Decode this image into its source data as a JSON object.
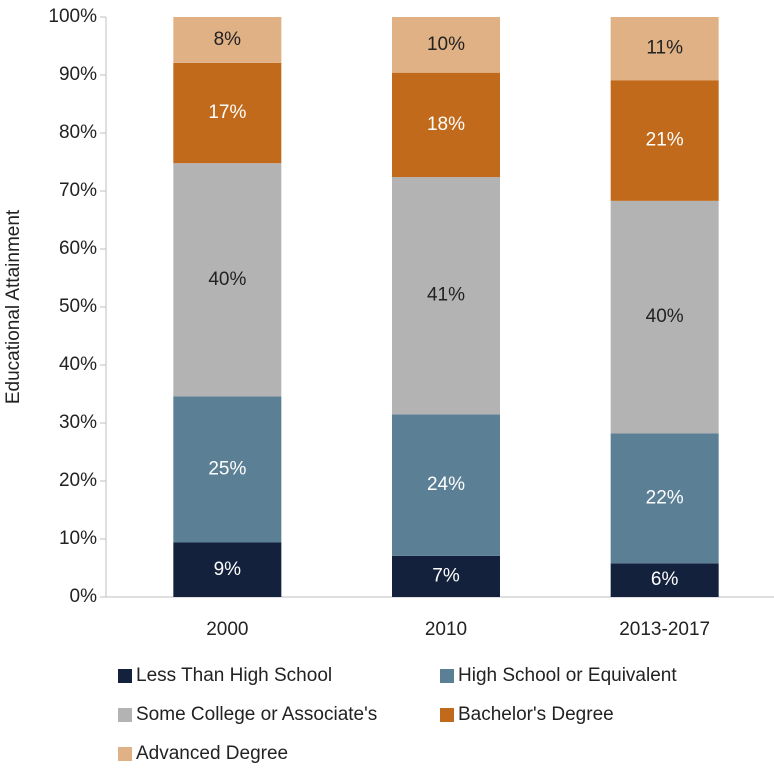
{
  "chart_data": {
    "type": "stacked_bar",
    "y_label": "Educational Attainment",
    "categories": [
      "2000",
      "2010",
      "2013-2017"
    ],
    "series": [
      {
        "name": "Less Than High School",
        "color": "#14213d",
        "values": [
          9.4,
          7.1,
          5.8
        ],
        "value_labels": [
          "9%",
          "7%",
          "6%"
        ]
      },
      {
        "name": "High School or Equivalent",
        "color": "#5b7f95",
        "values": [
          25.2,
          24.4,
          22.4
        ],
        "value_labels": [
          "25%",
          "24%",
          "22%"
        ]
      },
      {
        "name": "Some College or Associate's",
        "color": "#b3b3b3",
        "values": [
          40.2,
          40.9,
          40.1
        ],
        "value_labels": [
          "40%",
          "41%",
          "40%"
        ]
      },
      {
        "name": "Bachelor's Degree",
        "color": "#c26a1b",
        "values": [
          17.3,
          18.0,
          20.8
        ],
        "value_labels": [
          "17%",
          "18%",
          "21%"
        ]
      },
      {
        "name": "Advanced Degree",
        "color": "#e0b185",
        "values": [
          7.9,
          9.6,
          10.9
        ],
        "value_labels": [
          "8%",
          "10%",
          "11%"
        ]
      }
    ],
    "ylim": [
      0,
      100
    ],
    "yticks": [
      {
        "value": 0,
        "label": "0%"
      },
      {
        "value": 10,
        "label": "10%"
      },
      {
        "value": 20,
        "label": "20%"
      },
      {
        "value": 30,
        "label": "30%"
      },
      {
        "value": 40,
        "label": "40%"
      },
      {
        "value": 50,
        "label": "50%"
      },
      {
        "value": 60,
        "label": "60%"
      },
      {
        "value": 70,
        "label": "70%"
      },
      {
        "value": 80,
        "label": "80%"
      },
      {
        "value": 90,
        "label": "90%"
      },
      {
        "value": 100,
        "label": "100%"
      }
    ],
    "label_colors": [
      "#ffffff",
      "#ffffff",
      "#222222",
      "#ffffff",
      "#222222"
    ]
  }
}
